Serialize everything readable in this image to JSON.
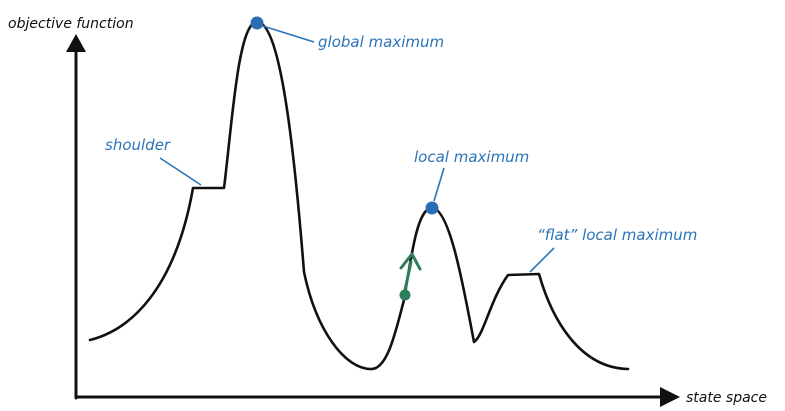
{
  "axes": {
    "y_label": "objective function",
    "x_label": "state space"
  },
  "annotations": {
    "global_maximum": "global maximum",
    "shoulder": "shoulder",
    "local_maximum": "local maximum",
    "flat_local_maximum": "“flat” local maximum"
  },
  "colors": {
    "curve": "#111111",
    "axis": "#111111",
    "annotation": "#2a74b8",
    "marker": "#2a6db5",
    "agent": "#2e7d5b"
  },
  "icons": {
    "agent_marker": "current-state-arrow-icon"
  }
}
